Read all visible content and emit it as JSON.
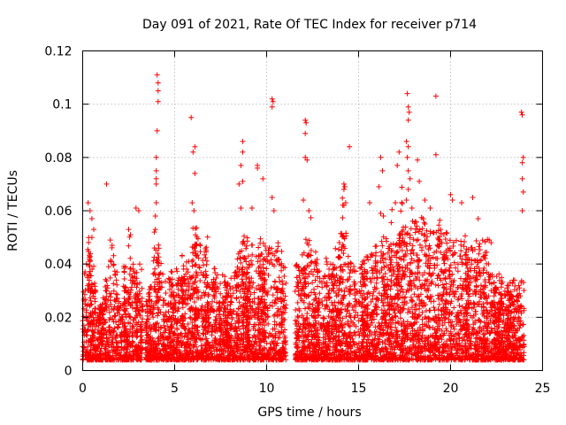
{
  "chart_data": {
    "type": "scatter",
    "title": "Day 091 of 2021, Rate Of TEC Index for receiver p714",
    "xlabel": "GPS time / hours",
    "ylabel": "ROTI / TECUs",
    "xlim": [
      0,
      25
    ],
    "ylim": [
      0,
      0.12
    ],
    "x_ticks": [
      0,
      5,
      10,
      15,
      20,
      25
    ],
    "y_ticks": [
      0,
      0.02,
      0.04,
      0.06,
      0.08,
      0.1,
      0.12
    ],
    "y_tick_labels": [
      "0",
      "0.02",
      "0.04",
      "0.06",
      "0.08",
      "0.1",
      "0.12"
    ],
    "grid": true,
    "marker": "+",
    "color": "#ff0000",
    "data_gaps_hours": [
      [
        3.25,
        3.4
      ],
      [
        11.05,
        11.55
      ]
    ],
    "density_description": "Dense cloud of points between 0.0 and ~0.03 TECUs across the whole day, with spikes reaching ~0.11 near 4.1h, ~0.104 near 17.7h and ~0.103 near 19.2h.",
    "series": [
      {
        "name": "ROTI",
        "points": [
          [
            1.3,
            0.07
          ],
          [
            2.9,
            0.061
          ],
          [
            3.05,
            0.06
          ],
          [
            4.05,
            0.111
          ],
          [
            4.1,
            0.108
          ],
          [
            4.1,
            0.105
          ],
          [
            4.1,
            0.101
          ],
          [
            4.05,
            0.09
          ],
          [
            4.0,
            0.08
          ],
          [
            4.0,
            0.075
          ],
          [
            4.0,
            0.072
          ],
          [
            4.0,
            0.07
          ],
          [
            4.0,
            0.063
          ],
          [
            3.95,
            0.058
          ],
          [
            3.95,
            0.053
          ],
          [
            3.9,
            0.052
          ],
          [
            3.9,
            0.046
          ],
          [
            5.9,
            0.095
          ],
          [
            6.1,
            0.084
          ],
          [
            6.0,
            0.082
          ],
          [
            6.1,
            0.074
          ],
          [
            5.95,
            0.063
          ],
          [
            6.05,
            0.06
          ],
          [
            8.7,
            0.086
          ],
          [
            8.7,
            0.082
          ],
          [
            8.6,
            0.077
          ],
          [
            8.7,
            0.071
          ],
          [
            8.5,
            0.07
          ],
          [
            8.6,
            0.061
          ],
          [
            9.5,
            0.077
          ],
          [
            9.5,
            0.076
          ],
          [
            9.8,
            0.072
          ],
          [
            9.2,
            0.061
          ],
          [
            10.3,
            0.102
          ],
          [
            10.35,
            0.101
          ],
          [
            10.3,
            0.099
          ],
          [
            10.3,
            0.065
          ],
          [
            10.4,
            0.06
          ],
          [
            12.1,
            0.094
          ],
          [
            12.15,
            0.093
          ],
          [
            12.1,
            0.089
          ],
          [
            12.1,
            0.08
          ],
          [
            12.2,
            0.079
          ],
          [
            12.0,
            0.064
          ],
          [
            12.3,
            0.06
          ],
          [
            14.2,
            0.07
          ],
          [
            14.25,
            0.069
          ],
          [
            14.2,
            0.068
          ],
          [
            14.3,
            0.063
          ],
          [
            14.2,
            0.062
          ],
          [
            14.5,
            0.084
          ],
          [
            15.6,
            0.063
          ],
          [
            16.2,
            0.08
          ],
          [
            16.3,
            0.075
          ],
          [
            16.1,
            0.069
          ],
          [
            16.2,
            0.059
          ],
          [
            16.35,
            0.058
          ],
          [
            17.2,
            0.082
          ],
          [
            17.1,
            0.077
          ],
          [
            17.0,
            0.063
          ],
          [
            17.65,
            0.104
          ],
          [
            17.7,
            0.099
          ],
          [
            17.75,
            0.097
          ],
          [
            17.7,
            0.094
          ],
          [
            17.6,
            0.086
          ],
          [
            17.7,
            0.084
          ],
          [
            17.65,
            0.08
          ],
          [
            17.7,
            0.075
          ],
          [
            17.8,
            0.072
          ],
          [
            17.7,
            0.068
          ],
          [
            17.6,
            0.064
          ],
          [
            17.9,
            0.061
          ],
          [
            18.2,
            0.079
          ],
          [
            18.3,
            0.071
          ],
          [
            18.6,
            0.064
          ],
          [
            18.9,
            0.061
          ],
          [
            19.2,
            0.103
          ],
          [
            19.2,
            0.081
          ],
          [
            20.0,
            0.066
          ],
          [
            20.1,
            0.064
          ],
          [
            20.6,
            0.063
          ],
          [
            21.2,
            0.065
          ],
          [
            21.5,
            0.057
          ],
          [
            22.1,
            0.049
          ],
          [
            22.2,
            0.048
          ],
          [
            23.85,
            0.097
          ],
          [
            23.9,
            0.096
          ],
          [
            23.95,
            0.08
          ],
          [
            23.9,
            0.078
          ],
          [
            23.9,
            0.072
          ],
          [
            23.95,
            0.067
          ],
          [
            23.9,
            0.06
          ],
          [
            0.3,
            0.063
          ],
          [
            0.4,
            0.06
          ],
          [
            0.5,
            0.057
          ],
          [
            0.6,
            0.053
          ],
          [
            0.5,
            0.05
          ],
          [
            1.5,
            0.049
          ],
          [
            1.6,
            0.047
          ],
          [
            2.5,
            0.053
          ],
          [
            2.6,
            0.051
          ],
          [
            3.1,
            0.04
          ],
          [
            3.2,
            0.038
          ]
        ]
      }
    ]
  }
}
